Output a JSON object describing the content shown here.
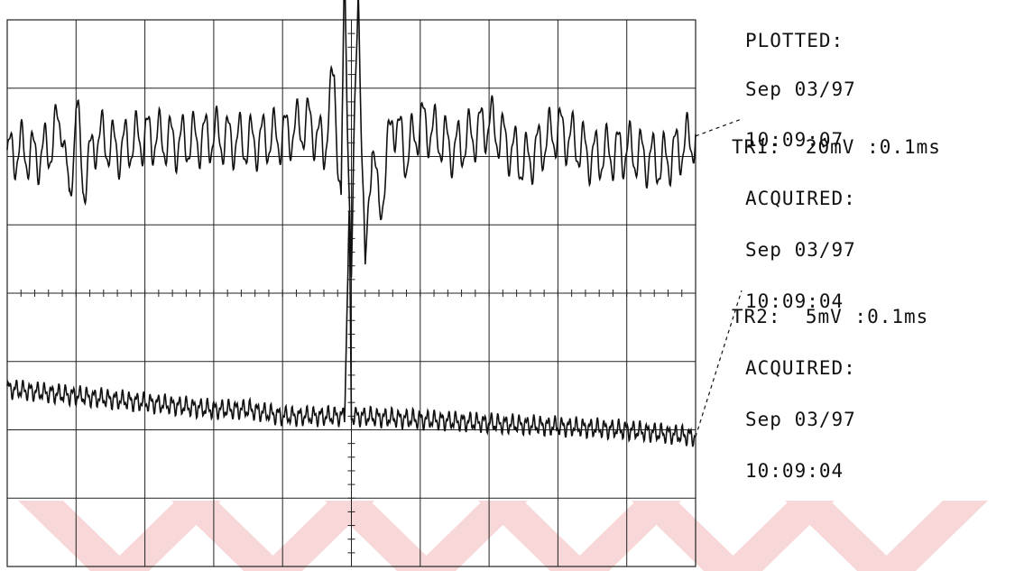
{
  "plot_info": {
    "heading": "PLOTTED:",
    "date": "Sep 03/97",
    "time": "10:09:07"
  },
  "trace1_info": {
    "header": "TR1:  20mV :0.1ms",
    "status": "ACQUIRED:",
    "date": "Sep 03/97",
    "time": "10:09:04"
  },
  "trace2_info": {
    "header": "TR2:  5mV :0.1ms",
    "status": "ACQUIRED:",
    "date": "Sep 03/97",
    "time": "10:09:04"
  },
  "colors": {
    "trace": "#111111",
    "grid": "#222222",
    "watermark": "#f7d7d7"
  },
  "chart_data": {
    "type": "line",
    "grid": true,
    "grid_divisions": {
      "x": 10,
      "y": 8
    },
    "x_units": "divisions",
    "y_units": "divisions",
    "xlim": [
      0,
      10
    ],
    "ylim": [
      -4,
      4
    ],
    "series": [
      {
        "name": "TR1",
        "x": [
          0,
          0.2,
          0.4,
          0.6,
          0.8,
          0.9,
          1.0,
          1.1,
          1.3,
          1.6,
          2.0,
          2.5,
          3.0,
          3.5,
          4.0,
          4.4,
          4.6,
          4.75,
          4.85,
          4.9,
          5.0,
          5.1,
          5.2,
          5.3,
          5.4,
          5.6,
          5.8,
          6.0,
          6.5,
          7.0,
          7.5,
          8.0,
          8.5,
          9.0,
          9.5,
          10.0
        ],
        "values": [
          2.0,
          2.1,
          2.0,
          2.1,
          2.6,
          1.2,
          2.8,
          1.6,
          2.3,
          2.1,
          2.3,
          2.2,
          2.3,
          2.2,
          2.3,
          2.5,
          2.1,
          3.2,
          1.2,
          4.6,
          0.3,
          4.6,
          0.1,
          2.4,
          1.1,
          2.6,
          2.0,
          2.5,
          2.1,
          2.5,
          1.9,
          2.4,
          2.0,
          2.1,
          1.9,
          2.3
        ],
        "amplitude_div": 0.35
      },
      {
        "name": "TR2",
        "x": [
          0,
          1,
          2,
          3,
          3.5,
          4,
          4.9,
          4.97,
          5.0,
          5.1,
          6,
          7,
          8,
          9,
          10
        ],
        "values": [
          -1.4,
          -1.5,
          -1.6,
          -1.7,
          -1.7,
          -1.8,
          -1.8,
          1.2,
          -1.8,
          -1.8,
          -1.85,
          -1.9,
          -1.95,
          -2.0,
          -2.1
        ],
        "amplitude_div": 0.1
      }
    ]
  }
}
